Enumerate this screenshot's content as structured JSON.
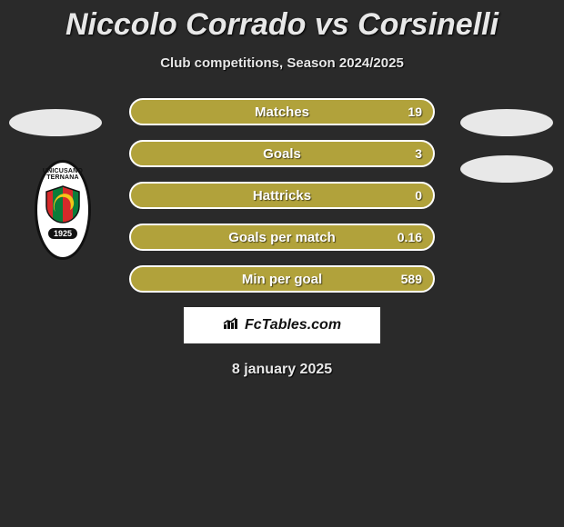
{
  "title": "Niccolo Corrado vs Corsinelli",
  "subtitle": "Club competitions, Season 2024/2025",
  "date": "8 january 2025",
  "brand": "FcTables.com",
  "crest": {
    "top_line1": "UNICUSANO",
    "top_line2": "TERNANA",
    "year": "1925",
    "stripe_color_a": "#d62a2a",
    "stripe_color_b": "#0a7d3a",
    "dragon_color": "#f2c518"
  },
  "ovals": {
    "fill": "#e8e8e8"
  },
  "bars": {
    "fill": "#b1a23b",
    "border": "#ffffff",
    "label_color": "#ffffff",
    "items": [
      {
        "label": "Matches",
        "value": "19"
      },
      {
        "label": "Goals",
        "value": "3"
      },
      {
        "label": "Hattricks",
        "value": "0"
      },
      {
        "label": "Goals per match",
        "value": "0.16"
      },
      {
        "label": "Min per goal",
        "value": "589"
      }
    ]
  }
}
